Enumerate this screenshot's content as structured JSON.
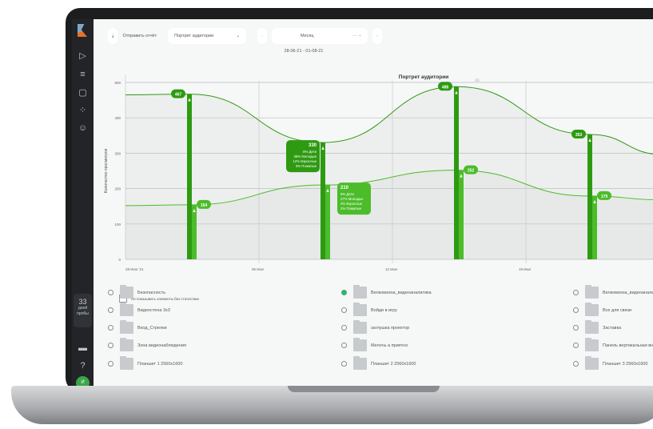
{
  "toolbar": {
    "send_report": "Отправить отчёт",
    "report_select": "Портрет аудитории",
    "period": "Месяц",
    "date_range": "28-06-21 - 01-08-21"
  },
  "sidebar": {
    "trial_days": "33",
    "trial_label": "дней пробы",
    "avatar": "И"
  },
  "list": {
    "hide_checkbox": "Не показывать элементы без статистики",
    "items": [
      {
        "label": "Безопасность",
        "checked": false
      },
      {
        "label": "Велкомзона_видеоаналитика",
        "checked": true
      },
      {
        "label": "Велкомзона_видеоаналитика",
        "checked": false
      },
      {
        "label": "Видеостена 3х3",
        "checked": false
      },
      {
        "label": "Войди в игру",
        "checked": false
      },
      {
        "label": "Все для связи",
        "checked": false
      },
      {
        "label": "Вход_Стрелки",
        "checked": false
      },
      {
        "label": "заглушка проектор",
        "checked": false
      },
      {
        "label": "Заставка",
        "checked": false
      },
      {
        "label": "Зона видеонаблюдения",
        "checked": false
      },
      {
        "label": "Мелочь а приятно",
        "checked": false
      },
      {
        "label": "Панель вертикальная внутр",
        "checked": false
      },
      {
        "label": "Планшет 1 2560х1600",
        "checked": false
      },
      {
        "label": "Планшет 2 2560х1600",
        "checked": false
      },
      {
        "label": "Планшет 3 2560х1600",
        "checked": false
      }
    ]
  },
  "chart_data": {
    "type": "line",
    "title": "Портрет аудитории",
    "ylabel": "Количество просмотров",
    "ylim": [
      0,
      500
    ],
    "yticks": [
      "0",
      "100",
      "200",
      "300",
      "400",
      "500"
    ],
    "xticks": [
      "28 Июн '21",
      "05 Июл",
      "12 Июл",
      "19 Июл"
    ],
    "grid": true,
    "colors": {
      "dark": "#2e9a12",
      "light": "#4cbc2a"
    },
    "series": [
      {
        "values": [
          467,
          330,
          488,
          353
        ]
      },
      {
        "values": [
          154,
          210,
          252,
          179
        ]
      }
    ],
    "tooltips": [
      {
        "value": "330",
        "lines": [
          "8% Дети",
          "38% Молодые",
          "12% Взрослые",
          "3% Пожилые"
        ]
      },
      {
        "value": "210",
        "lines": [
          "9% Дети",
          "27% Молодые",
          "2% Взрослые",
          "2% Пожилые"
        ]
      }
    ]
  }
}
